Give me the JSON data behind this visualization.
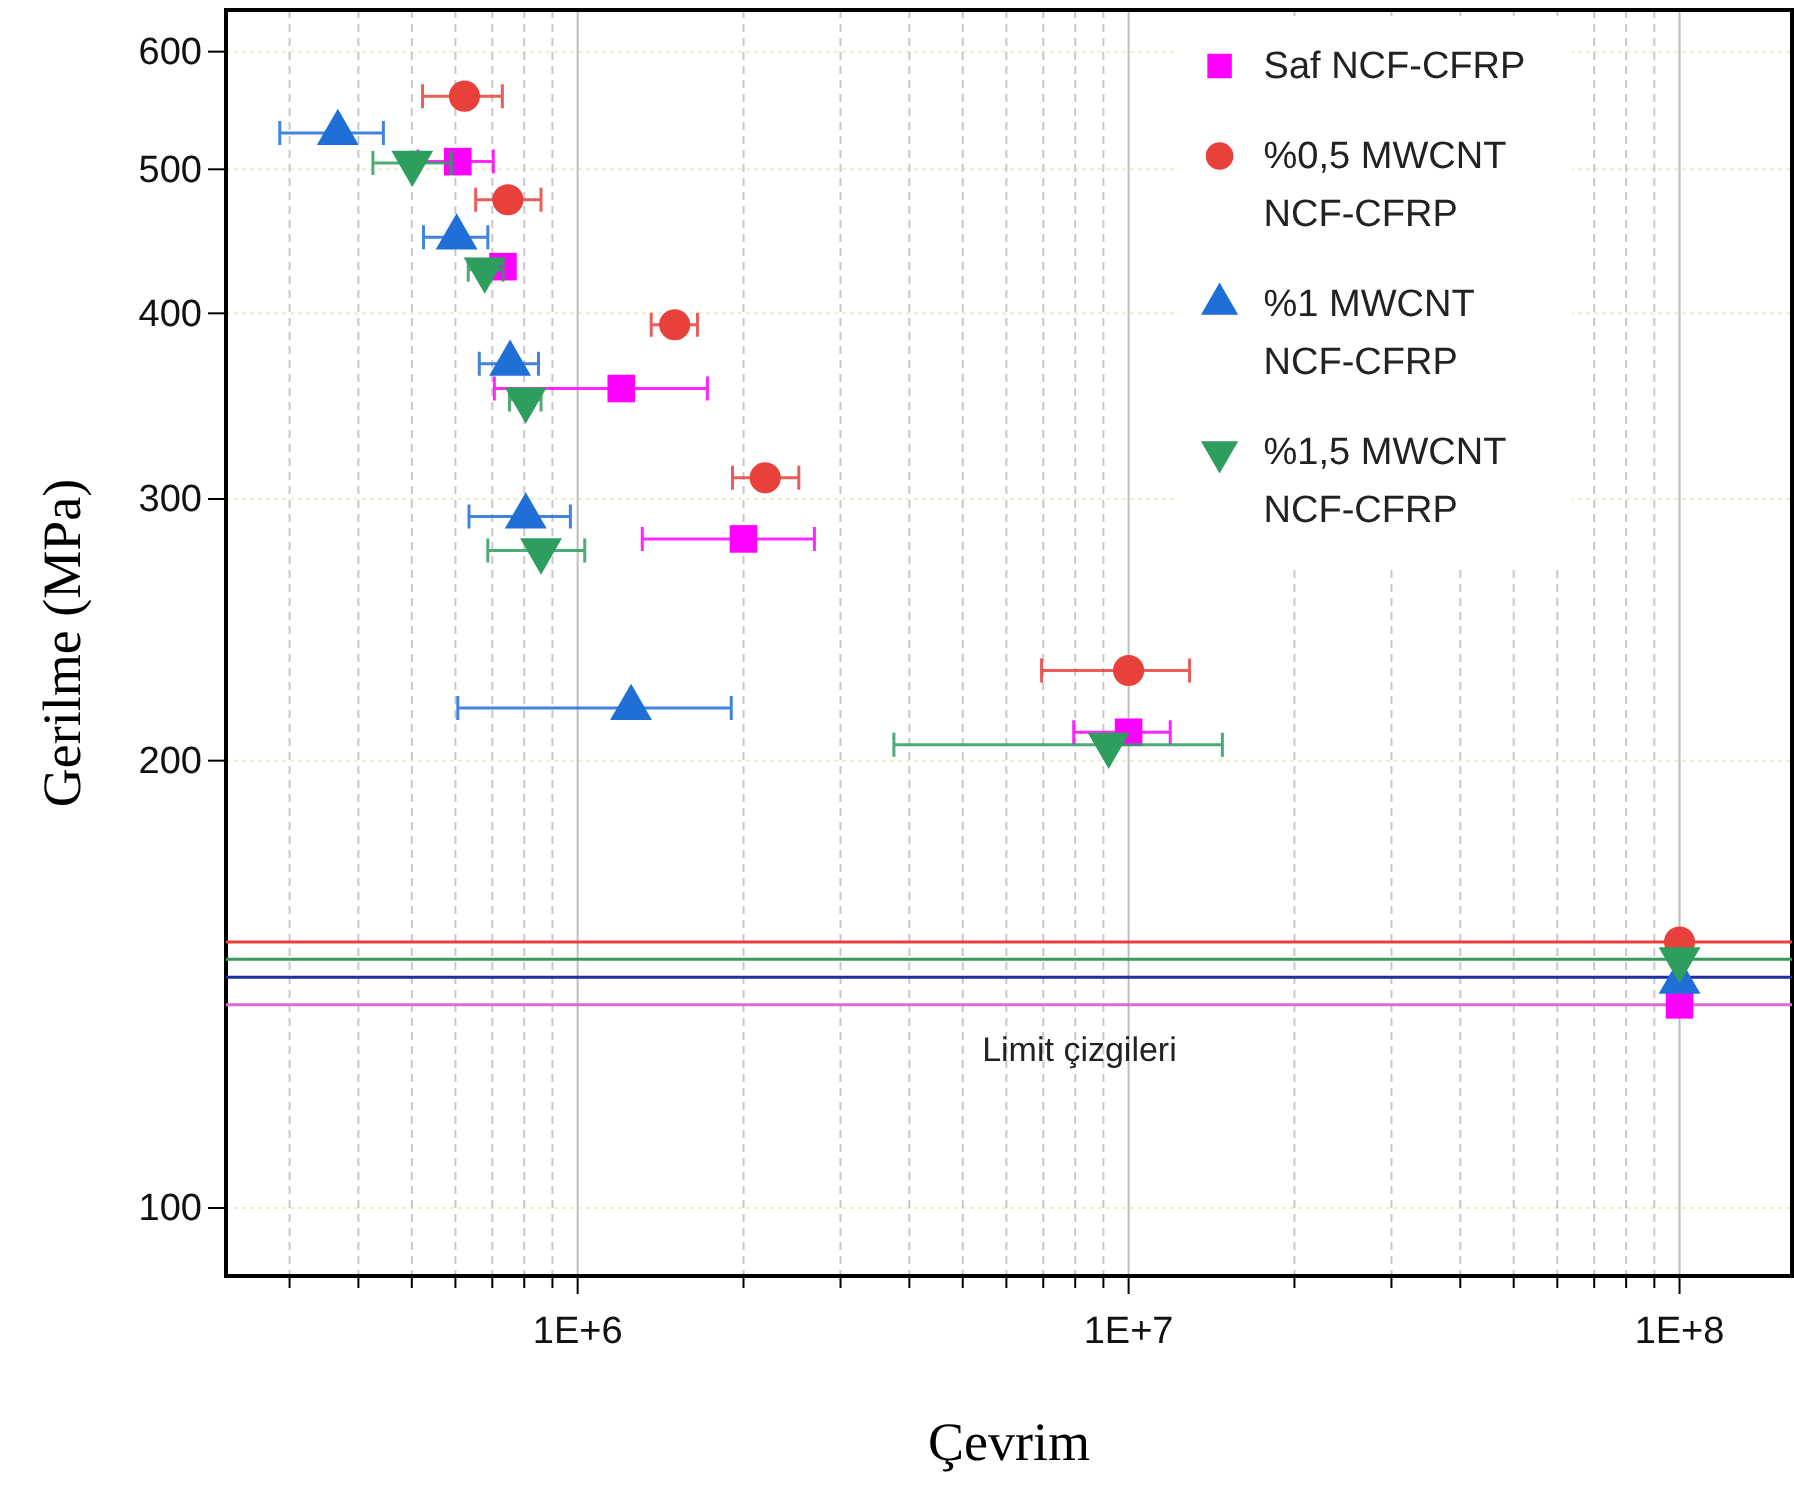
{
  "chart_data": {
    "type": "scatter",
    "xlabel": "Çevrim",
    "ylabel": "Gerilme (MPa)",
    "log": "xy",
    "grid": true,
    "legend": "top right",
    "xlim": [
      230000,
      160000000
    ],
    "ylim": [
      90,
      640
    ],
    "xticks": [
      {
        "value": 300000,
        "label": null
      },
      {
        "value": 400000,
        "label": null
      },
      {
        "value": 500000,
        "label": null
      },
      {
        "value": 600000,
        "label": null
      },
      {
        "value": 700000,
        "label": null
      },
      {
        "value": 800000,
        "label": null
      },
      {
        "value": 900000,
        "label": null
      },
      {
        "value": 1000000,
        "label": "1E+6"
      },
      {
        "value": 2000000,
        "label": null
      },
      {
        "value": 3000000,
        "label": null
      },
      {
        "value": 4000000,
        "label": null
      },
      {
        "value": 5000000,
        "label": null
      },
      {
        "value": 6000000,
        "label": null
      },
      {
        "value": 7000000,
        "label": null
      },
      {
        "value": 8000000,
        "label": null
      },
      {
        "value": 9000000,
        "label": null
      },
      {
        "value": 10000000,
        "label": "1E+7"
      },
      {
        "value": 20000000,
        "label": null
      },
      {
        "value": 30000000,
        "label": null
      },
      {
        "value": 40000000,
        "label": null
      },
      {
        "value": 50000000,
        "label": null
      },
      {
        "value": 60000000,
        "label": null
      },
      {
        "value": 70000000,
        "label": null
      },
      {
        "value": 80000000,
        "label": null
      },
      {
        "value": 90000000,
        "label": null
      },
      {
        "value": 100000000,
        "label": "1E+8"
      }
    ],
    "yticks": [
      100,
      200,
      300,
      400,
      500,
      600
    ],
    "series": [
      {
        "name": "Saf NCF-CFRP",
        "color": "#ff00ff",
        "marker": "square",
        "x": [
          606000,
          732000,
          1200000,
          2000000,
          10000000,
          100000000
        ],
        "values": [
          506,
          430,
          356,
          282,
          209,
          137
        ],
        "xerrors": [
          [
            513000,
            703000
          ],
          null,
          [
            706000,
            1720000
          ],
          [
            1310000,
            2690000
          ],
          [
            7950000,
            11900000
          ],
          null
        ]
      },
      {
        "name": "%0,5 MWCNT NCF-CFRP",
        "color": "#e8413c",
        "marker": "circle",
        "x": [
          623000,
          747000,
          1500000,
          2190000,
          10000000,
          100000000
        ],
        "values": [
          560,
          477,
          393,
          310,
          230,
          151
        ],
        "xerrors": [
          [
            523000,
            730000
          ],
          [
            653000,
            858000
          ],
          [
            1360000,
            1650000
          ],
          [
            1910000,
            2520000
          ],
          [
            6950000,
            12900000
          ],
          null
        ]
      },
      {
        "name": "%1 MWCNT NCF-CFRP",
        "color": "#1f6fd6",
        "marker": "triangle",
        "x": [
          367000,
          603000,
          754000,
          805000,
          1250000,
          100000000
        ],
        "values": [
          529,
          450,
          370,
          292,
          217,
          142
        ],
        "xerrors": [
          [
            288000,
            444000
          ],
          [
            525000,
            687000
          ],
          [
            663000,
            849000
          ],
          [
            635000,
            970000
          ],
          [
            606000,
            1900000
          ],
          null
        ]
      },
      {
        "name": "%1,5 MWCNT NCF-CFRP",
        "color": "#2e9e5e",
        "marker": "triangle-down",
        "x": [
          501000,
          678000,
          805000,
          858000,
          9200000,
          100000000
        ],
        "values": [
          505,
          428,
          350,
          277,
          205,
          147
        ],
        "xerrors": [
          [
            425000,
            590000
          ],
          [
            633000,
            732000
          ],
          [
            752000,
            858000
          ],
          [
            687000,
            1030000
          ],
          [
            3750000,
            14800000
          ],
          null
        ]
      }
    ],
    "ref_lines": [
      {
        "axis": "y",
        "value": 151,
        "color": "#e8413c"
      },
      {
        "axis": "y",
        "value": 147,
        "color": "#3a9a5b"
      },
      {
        "axis": "y",
        "value": 143,
        "color": "#1b2f9e"
      },
      {
        "axis": "y",
        "value": 137,
        "color": "#d96cd6"
      }
    ],
    "annotations": [
      "Limit çizgileri"
    ]
  }
}
